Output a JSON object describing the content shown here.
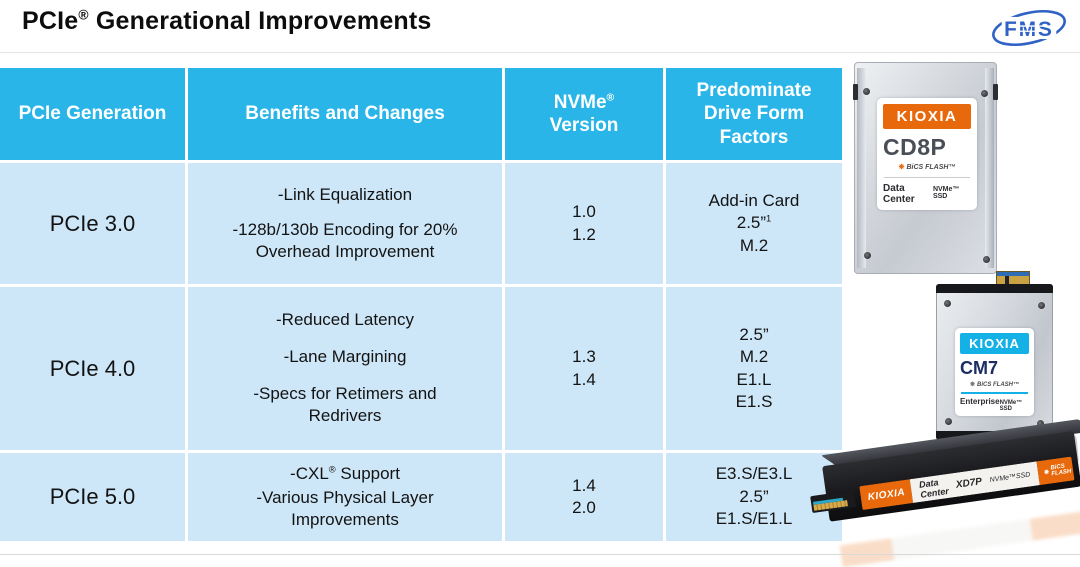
{
  "page": {
    "title": "PCIe® Generational Improvements",
    "brand": "FMS"
  },
  "colors": {
    "header_bg": "#29B5E8",
    "row_bg": "#CEE7F8",
    "kioxia_orange": "#E8690B",
    "kioxia_cyan": "#14B1E7",
    "fms_blue": "#2F62C4"
  },
  "table": {
    "headers": [
      "PCIe Generation",
      "Benefits and Changes",
      "NVMe® Version",
      "Predominate Drive Form Factors"
    ],
    "rows": [
      {
        "generation": "PCIe 3.0",
        "benefits": [
          "-Link Equalization",
          "-128b/130b Encoding for 20% Overhead Improvement"
        ],
        "nvme_versions": [
          "1.0",
          "1.2"
        ],
        "form_factors": [
          "Add-in Card",
          "2.5”¹",
          "M.2"
        ]
      },
      {
        "generation": "PCIe 4.0",
        "benefits": [
          "-Reduced Latency",
          "-Lane Margining",
          "-Specs for Retimers and Redrivers"
        ],
        "nvme_versions": [
          "1.3",
          "1.4"
        ],
        "form_factors": [
          "2.5”",
          "M.2",
          "E1.L",
          "E1.S"
        ]
      },
      {
        "generation": "PCIe 5.0",
        "benefits": [
          "-CXL® Support",
          "-Various Physical Layer Improvements"
        ],
        "nvme_versions": [
          "1.4",
          "2.0"
        ],
        "form_factors": [
          "E3.S/E3.L",
          "2.5”",
          "E1.S/E1.L"
        ]
      }
    ]
  },
  "drives": {
    "cd8p": {
      "brand": "KIOXIA",
      "model": "CD8P",
      "flash": "BiCS FLASH™",
      "segment": "Data Center",
      "interface": "NVMe™ SSD"
    },
    "cm7": {
      "brand": "KIOXIA",
      "model": "CM7",
      "flash": "BiCS FLASH™",
      "segment": "Enterprise",
      "interface": "NVMe™ SSD"
    },
    "xd7p": {
      "brand": "KIOXIA",
      "model": "XD7P",
      "flash": "BiCS FLASH",
      "segment": "Data Center",
      "interface": "NVMe™SSD"
    }
  }
}
